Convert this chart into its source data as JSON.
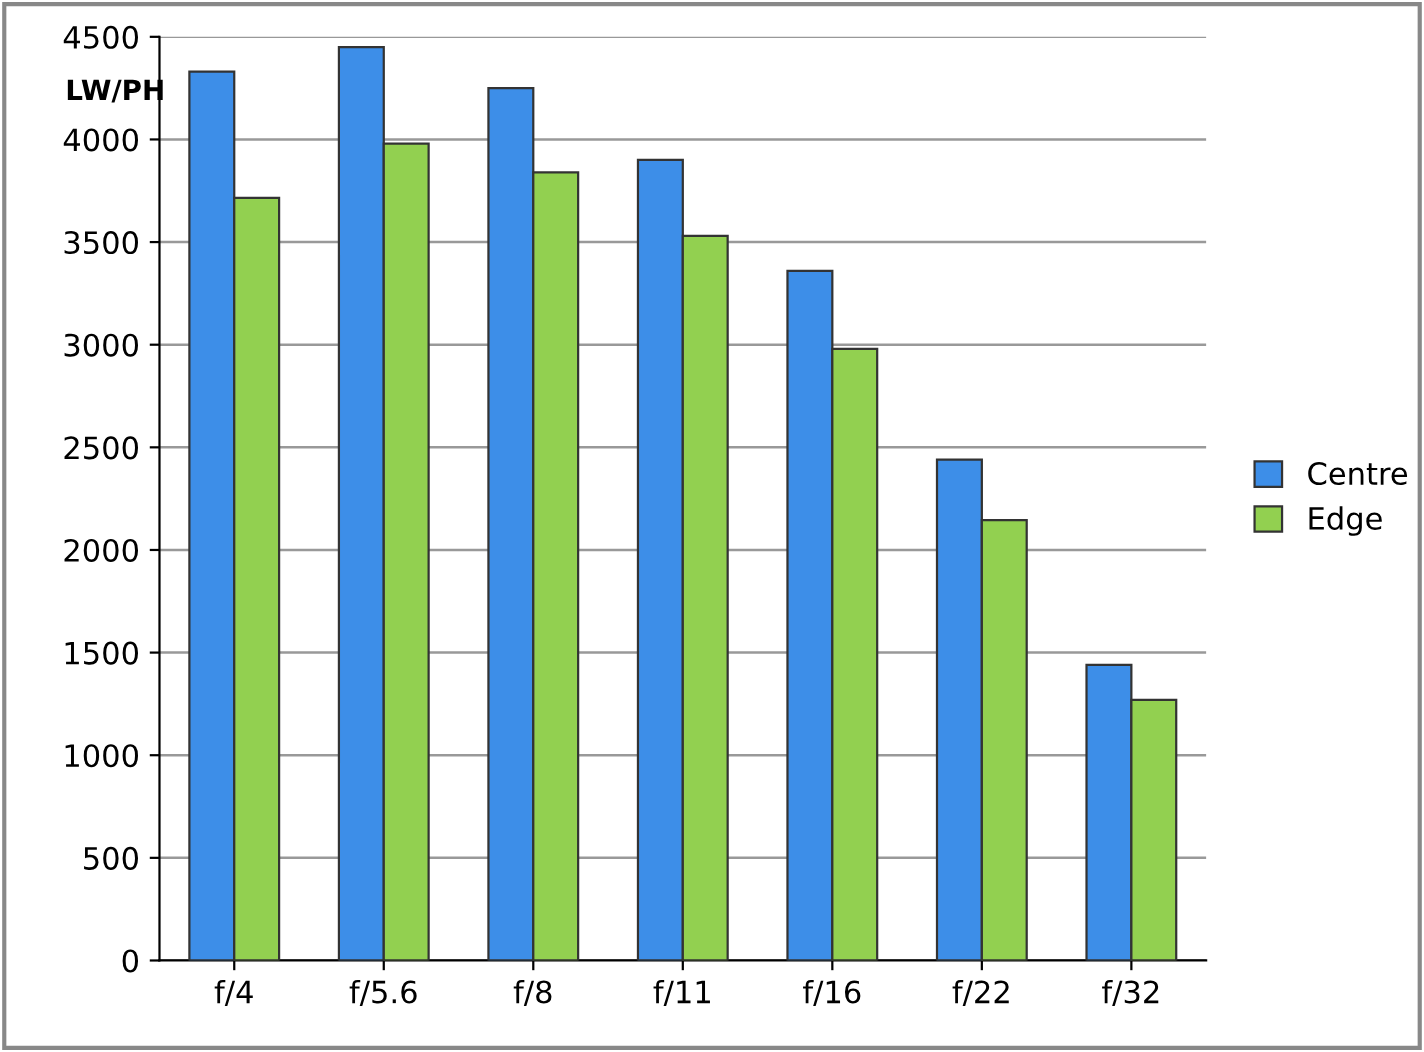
{
  "chart_data": {
    "type": "bar",
    "ylabel": "LW/PH",
    "categories": [
      "f/4",
      "f/5.6",
      "f/8",
      "f/11",
      "f/16",
      "f/22",
      "f/32"
    ],
    "series": [
      {
        "name": "Centre",
        "color": "#3d8ee8",
        "values": [
          4330,
          4450,
          4250,
          3900,
          3360,
          2440,
          1440
        ]
      },
      {
        "name": "Edge",
        "color": "#92d050",
        "values": [
          3715,
          3980,
          3840,
          3530,
          2980,
          2145,
          1270
        ]
      }
    ],
    "ylim": [
      0,
      4500
    ],
    "yticks": [
      0,
      500,
      1000,
      1500,
      2000,
      2500,
      3000,
      3500,
      4000,
      4500
    ],
    "grid": "y",
    "legend": "right"
  }
}
